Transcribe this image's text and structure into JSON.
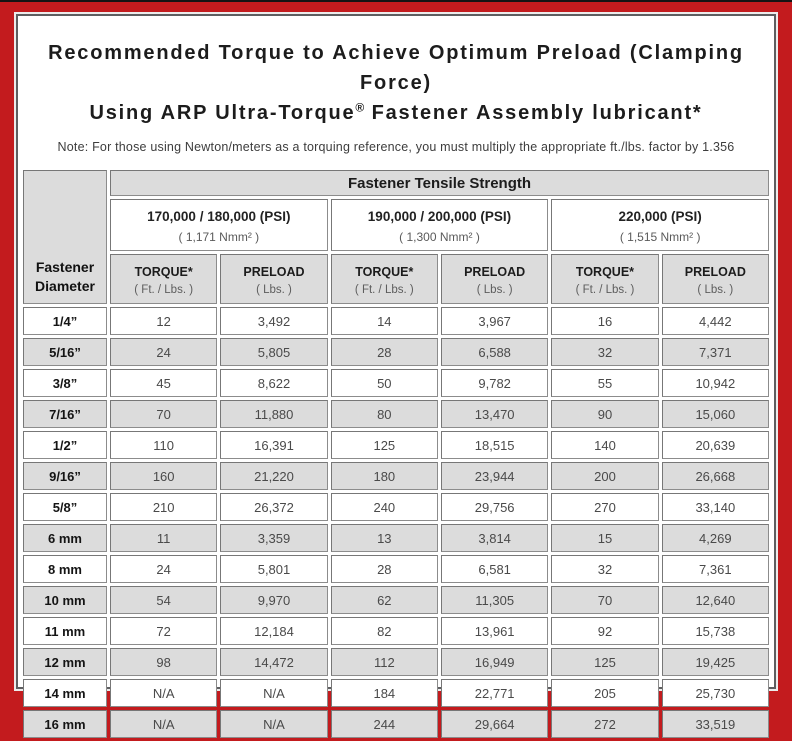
{
  "page": {
    "title_line1": "Recommended Torque to Achieve Optimum Preload (Clamping Force)",
    "title_line2_pre": "Using ARP Ultra-Torque",
    "title_reg_mark": "®",
    "title_line2_post": " Fastener Assembly lubricant*",
    "note": "Note: For those using Newton/meters as a torquing reference, you must multiply the appropriate ft./lbs. factor by 1.356"
  },
  "table": {
    "corner_header_line1": "Fastener",
    "corner_header_line2": "Diameter",
    "tensile_title": "Fastener Tensile Strength",
    "groups": [
      {
        "psi": "170,000 / 180,000 (PSI)",
        "nmm": "( 1,171 Nmm² )"
      },
      {
        "psi": "190,000 / 200,000 (PSI)",
        "nmm": "( 1,300 Nmm² )"
      },
      {
        "psi": "220,000 (PSI)",
        "nmm": "( 1,515 Nmm² )"
      }
    ],
    "torque_label": "TORQUE*",
    "torque_sub": "( Ft. / Lbs. )",
    "preload_label": "PRELOAD",
    "preload_sub": "( Lbs. )",
    "rows": [
      {
        "diameter": "1/4”",
        "values": [
          "12",
          "3,492",
          "14",
          "3,967",
          "16",
          "4,442"
        ]
      },
      {
        "diameter": "5/16”",
        "values": [
          "24",
          "5,805",
          "28",
          "6,588",
          "32",
          "7,371"
        ]
      },
      {
        "diameter": "3/8”",
        "values": [
          "45",
          "8,622",
          "50",
          "9,782",
          "55",
          "10,942"
        ]
      },
      {
        "diameter": "7/16”",
        "values": [
          "70",
          "11,880",
          "80",
          "13,470",
          "90",
          "15,060"
        ]
      },
      {
        "diameter": "1/2”",
        "values": [
          "110",
          "16,391",
          "125",
          "18,515",
          "140",
          "20,639"
        ]
      },
      {
        "diameter": "9/16”",
        "values": [
          "160",
          "21,220",
          "180",
          "23,944",
          "200",
          "26,668"
        ]
      },
      {
        "diameter": "5/8”",
        "values": [
          "210",
          "26,372",
          "240",
          "29,756",
          "270",
          "33,140"
        ]
      },
      {
        "diameter": "6 mm",
        "values": [
          "11",
          "3,359",
          "13",
          "3,814",
          "15",
          "4,269"
        ]
      },
      {
        "diameter": "8 mm",
        "values": [
          "24",
          "5,801",
          "28",
          "6,581",
          "32",
          "7,361"
        ]
      },
      {
        "diameter": "10 mm",
        "values": [
          "54",
          "9,970",
          "62",
          "11,305",
          "70",
          "12,640"
        ]
      },
      {
        "diameter": "11 mm",
        "values": [
          "72",
          "12,184",
          "82",
          "13,961",
          "92",
          "15,738"
        ]
      },
      {
        "diameter": "12 mm",
        "values": [
          "98",
          "14,472",
          "112",
          "16,949",
          "125",
          "19,425"
        ]
      },
      {
        "diameter": "14 mm",
        "values": [
          "N/A",
          "N/A",
          "184",
          "22,771",
          "205",
          "25,730"
        ]
      },
      {
        "diameter": "16 mm",
        "values": [
          "N/A",
          "N/A",
          "244",
          "29,664",
          "272",
          "33,519"
        ]
      }
    ]
  },
  "colors": {
    "frame_red": "#c31b1e",
    "stripe_gray": "#dcdcdc",
    "cell_border_gray": "#8c8c8c",
    "panel_border_dark": "#5e5e60"
  }
}
